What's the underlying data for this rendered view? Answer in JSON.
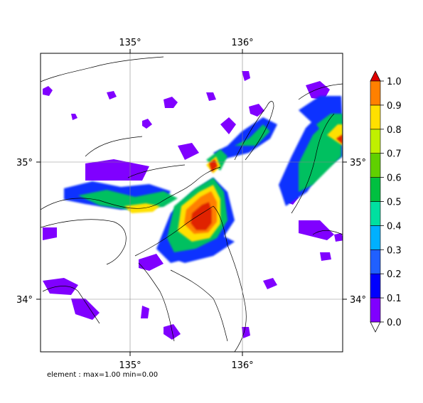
{
  "map": {
    "footer": "element : max=1.00 min=0.00",
    "lon_ticks": [
      {
        "label": "135°",
        "lon": 135
      },
      {
        "label": "136°",
        "lon": 136
      }
    ],
    "lat_ticks": [
      {
        "label": "35°",
        "lat": 35
      },
      {
        "label": "34°",
        "lat": 34
      }
    ],
    "extent": {
      "lon_min": 134.2,
      "lon_max": 136.88,
      "lat_min": 33.6,
      "lat_max": 35.82
    },
    "colorbar": {
      "levels": [
        "0.0",
        "0.1",
        "0.2",
        "0.3",
        "0.4",
        "0.5",
        "0.6",
        "0.7",
        "0.8",
        "0.9",
        "1.0"
      ],
      "colors": [
        "#8000ff",
        "#0000ff",
        "#2060ff",
        "#00b0ff",
        "#00e0a0",
        "#00c040",
        "#60d000",
        "#c0f000",
        "#ffe000",
        "#ff8000"
      ],
      "under_color": "#ffffff",
      "over_color": "#e00000"
    }
  }
}
